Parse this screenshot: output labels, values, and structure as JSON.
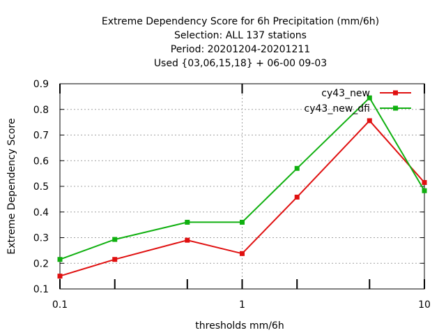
{
  "chart_data": {
    "type": "line",
    "title_lines": [
      "Extreme Dependency Score  for 6h Precipitation (mm/6h)",
      "Selection: ALL    137 stations",
      "Period: 20201204-20201211",
      "Used {03,06,15,18} + 06-00 09-03"
    ],
    "xlabel": "thresholds mm/6h",
    "ylabel": "Extreme Dependency Score",
    "x_scale": "log",
    "xlim": [
      0.1,
      10
    ],
    "ylim": [
      0.1,
      0.9
    ],
    "x_ticks": [
      0.1,
      1,
      10
    ],
    "x_tick_labels": [
      "0.1",
      "1",
      "10"
    ],
    "x_minor_ticks": [
      0.2,
      0.5,
      2,
      5
    ],
    "y_ticks": [
      0.1,
      0.2,
      0.3,
      0.4,
      0.5,
      0.6,
      0.7,
      0.8,
      0.9
    ],
    "y_tick_labels": [
      "0.1",
      "0.2",
      "0.3",
      "0.4",
      "0.5",
      "0.6",
      "0.7",
      "0.8",
      "0.9"
    ],
    "grid": true,
    "legend_position": "top-right",
    "x": [
      0.1,
      0.2,
      0.5,
      1,
      2,
      5,
      10
    ],
    "series": [
      {
        "name": "cy43_new",
        "color": "#e01010",
        "values": [
          0.15,
          0.215,
          0.29,
          0.238,
          0.458,
          0.756,
          0.515
        ]
      },
      {
        "name": "cy43_new_dfi",
        "color": "#10b010",
        "values": [
          0.215,
          0.293,
          0.36,
          0.36,
          0.57,
          0.845,
          0.483
        ]
      }
    ]
  }
}
